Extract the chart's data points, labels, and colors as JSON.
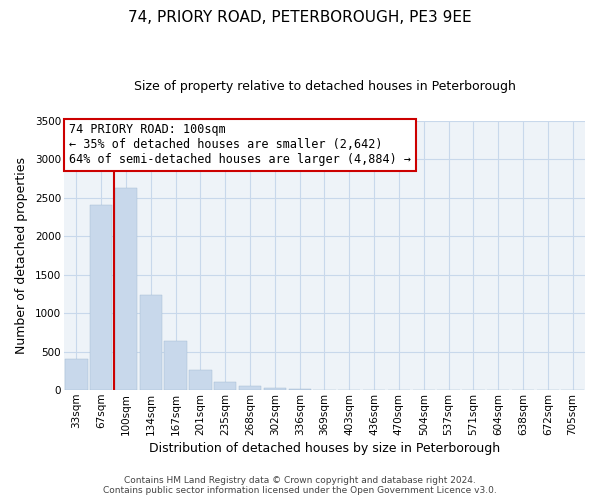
{
  "title": "74, PRIORY ROAD, PETERBOROUGH, PE3 9EE",
  "subtitle": "Size of property relative to detached houses in Peterborough",
  "xlabel": "Distribution of detached houses by size in Peterborough",
  "ylabel": "Number of detached properties",
  "categories": [
    "33sqm",
    "67sqm",
    "100sqm",
    "134sqm",
    "167sqm",
    "201sqm",
    "235sqm",
    "268sqm",
    "302sqm",
    "336sqm",
    "369sqm",
    "403sqm",
    "436sqm",
    "470sqm",
    "504sqm",
    "537sqm",
    "571sqm",
    "604sqm",
    "638sqm",
    "672sqm",
    "705sqm"
  ],
  "values": [
    400,
    2400,
    2620,
    1240,
    640,
    260,
    100,
    55,
    30,
    20,
    0,
    0,
    0,
    0,
    0,
    0,
    0,
    0,
    0,
    0,
    0
  ],
  "bar_color": "#c8d8eb",
  "bar_edge_color": "#a0b8d0",
  "vline_index": 2,
  "vline_color": "#cc0000",
  "ylim": [
    0,
    3500
  ],
  "yticks": [
    0,
    500,
    1000,
    1500,
    2000,
    2500,
    3000,
    3500
  ],
  "annotation_title": "74 PRIORY ROAD: 100sqm",
  "annotation_line1": "← 35% of detached houses are smaller (2,642)",
  "annotation_line2": "64% of semi-detached houses are larger (4,884) →",
  "annotation_box_color": "#ffffff",
  "annotation_box_edge": "#cc0000",
  "footer_line1": "Contains HM Land Registry data © Crown copyright and database right 2024.",
  "footer_line2": "Contains public sector information licensed under the Open Government Licence v3.0.",
  "background_color": "#ffffff",
  "plot_bg_color": "#eef3f8",
  "grid_color": "#c8d8eb",
  "title_fontsize": 11,
  "subtitle_fontsize": 9,
  "tick_fontsize": 7.5,
  "label_fontsize": 9,
  "footer_fontsize": 6.5,
  "ann_fontsize": 8.5
}
